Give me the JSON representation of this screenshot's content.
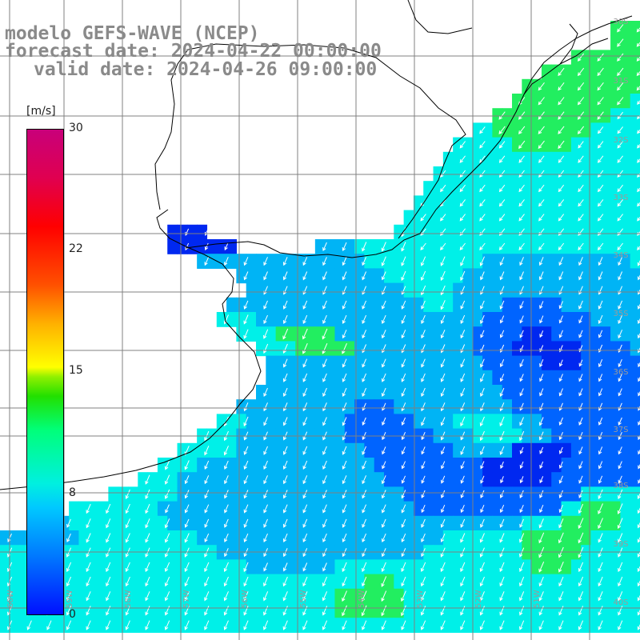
{
  "title": {
    "model": "modelo GEFS-WAVE (NCEP)",
    "forecast_date": "forecast date: 2024-04-22 00:00:00",
    "valid_date": "valid date: 2024-04-26 09:00:00"
  },
  "colorbar": {
    "unit": "[m/s]",
    "ticks": [
      "30",
      "22",
      "15",
      "8",
      "0"
    ],
    "colors": [
      "#0010ff",
      "#0078ff",
      "#00c8ff",
      "#00f0e0",
      "#00ff7a",
      "#22e000",
      "#ffff00",
      "#ff5000",
      "#ff0000",
      "#c8007a"
    ]
  },
  "axes": {
    "lat_labels": [
      "30S",
      "31S",
      "32S",
      "33S",
      "34S",
      "35S",
      "36S",
      "37S",
      "38S",
      "39S",
      "40S",
      "41S"
    ],
    "lon_labels": [
      "60W",
      "59W",
      "58W",
      "57W",
      "56W",
      "55W",
      "54W",
      "53W",
      "52W",
      "51W"
    ]
  },
  "map_colors": {
    "land": "#ffffff",
    "coast": "#000000",
    "grid": "#808080",
    "arrow": "#ffffff"
  },
  "wind_field": {
    "units": "m/s",
    "rows": [
      "..............................................................AAA",
      "..............................................................AAA",
      "..........................................................AAAAAAA",
      ".......................................................AAAAAAAAAA",
      ".....................................................AAAAAAAAAAAA",
      "....................................................AAAAAAAAAAAAB",
      "..................................................AAAAAAAAAAAABBB",
      "................................................BBAAAAAAAAAABBBBB",
      "..............................................BBBBBBAAAAAABBBBBBB",
      ".............................................BBBBBBBBBBBBBBBBBBBB",
      "............................................BBBBBBBBBBBBBBBBBBBBB",
      "...........................................BBBBBBBBBBBBBBBBBBBBBB",
      "..........................................BBBBBBBBBBBBBBBBBBBBBBB",
      ".........................................BBBBBBBBBBBBBBBBBBBBBBBB",
      ".................EEEE...................BBBBBBBBBBBBBBBBBBBBBBBBB",
      ".................EEEEEEE........CCCCBBBBBBBBBBBBBBBBBBBBBBBBBBBBB",
      "....................CCCCCCCCCCCCCCCCCBBBBBBBBBBBBCCCCCCCCCCCCCCCB",
      "........................CCCCCCCCCCCCCCCBBBBBBBBCCCCCCCCCCCCCCCCCC",
      ".........................CCCCCCCCCCCCCCCCBBBBBCCCCCCCCCCCCCCCCCCC",
      ".......................CCCCCCCCCCCCCCCCCCCCBBBCCCCCDDDDDDCCCCCCCC",
      "......................BBBBCCCCCCCCCCCCCCCCCCCCCCCDDDDDDDDDDDCCCCC",
      "........................BBBBAAAAAACCCCCCCCCCCCCCDDDDDEEEDDDDDDCCC",
      "..........................BBBBAAAAAACCCCCCCCCCCCDDDDEEEEEEEDDDDDC",
      "...........................CCCCCCCCCCCCCCCCCCCCCCDDDDDDEEEEDDDDDD",
      "...........................CCCCCCCCCCCCCCCCCCCCCCCDDDDDDDDDDDDDDD",
      "..........................CCCCCCCCCCCCCCCCCCCCCCCCCDDDDDDDDDDDDDD",
      "........................CCCCCCCCCCCCDDDDCCCCCCCCCCCCDDDDDDDDDDDDD",
      "......................BBBCCCCCCCCCCDDDDDDDCCCCBBBBBBCCCDDDDDDDDDD",
      "....................BBBBCCCCCCCCCCCDDDDDDDDDCCCCBBBBBCCCDDDDDDDDD",
      "..................BBBBBBCCCCCCCCCCCCCDDDDDDDDDCCCCCCEEEEEEDDDDDDD",
      "................BBBBCCCCCCCCCCCCCCCCCCDDDDDDDDDDDEEEEEEEEDDDDDDDD",
      "..............BBBBCCCCCCCCCCCCCCCCCCCCCDDDDDDDDDDEEEEEEEDDDDDDDDD",
      "...........BBBBBBBCCCCCCCCCCCCCCCCCCCCCCCDDDDDDDDDDDDDDDDDDBBBBBB",
      ".......BBBBBBBBBCCCCCCCCCCCCCCCCCCCCCCCCCCDDDDDDDDDDDDDDDBBAAAABB",
      "...CCCCBBBBBBBBBBCCCCCCCCCCCCCCCCCCCCCCCCCCCCCCCCCCCCBBBBAAAAAABB",
      "CCCCCCCCBBBBBBBBBBBBCCCCCCCCCCCCCCCCCCCCCCCCCBBBBBBBBAAAAAAABBBBB",
      "BBBBBBBBBBBBBBBBBBBBBBCCCCCCCCCCCCCCCCCCCCCBBBBBBBBBBAAAAAABBBBBB",
      "BBBBBBBBBBBBBBBBBBBBBBBBBCCCCCCCCCBBBBBBBBBBBBBBBBBBBBAAAABBBBBBB",
      "BBBBBBBBBBBBBBBBBBBBBBBBBBBBBBBBBBBBBAAABBBBBBBBBBBBBBBBBBBBBBBBB",
      "BBBBBBBBBBBBBBBBBBBBBBBBBBBBBBBBBBAAAAAAABBBBBBBBBBBBBBBBBBBBBBBB",
      "BBBBBBBBBBBBBBBBBBBBBBBBBBBBBBBBBBAAAAAAABBBBBBBBBBBBBBBBBBBBBBBB",
      "BBBBBBBBBBBBBBBBBBBBBBBBBBBBBBBBBBBBBBBBBBBBBBBBBBBBBBBBBBBBBBBBB"
    ],
    "classes": {
      "A": {
        "speed": 10,
        "color": "#22ee60"
      },
      "B": {
        "speed": 8,
        "color": "#00f0e8"
      },
      "C": {
        "speed": 6.5,
        "color": "#00b4f5"
      },
      "D": {
        "speed": 5,
        "color": "#0064ff"
      },
      "E": {
        "speed": 3.5,
        "color": "#0028f0"
      }
    },
    "direction": "southwest"
  }
}
